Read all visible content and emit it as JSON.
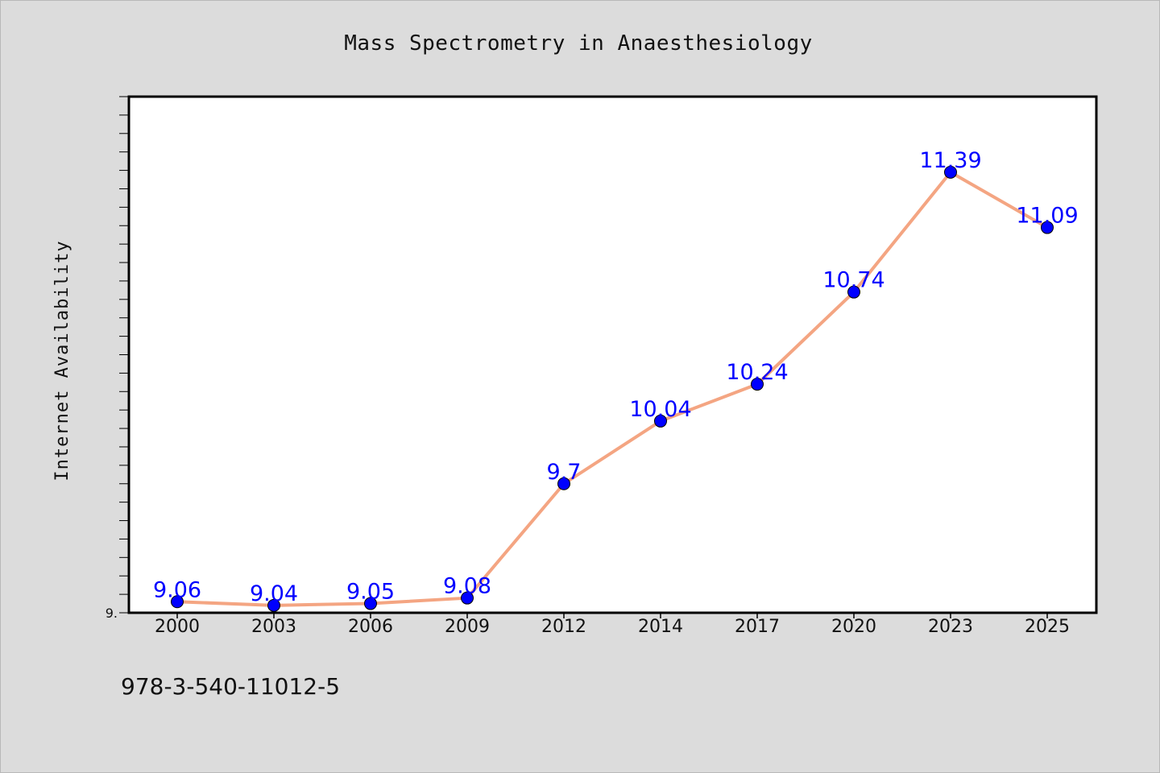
{
  "chart_data": {
    "type": "line",
    "title": "Mass Spectrometry in Anaesthesiology",
    "xlabel": "",
    "ylabel": "Internet Availability",
    "categories": [
      "2000",
      "2003",
      "2006",
      "2009",
      "2012",
      "2014",
      "2017",
      "2020",
      "2023",
      "2025"
    ],
    "series": [
      {
        "values": [
          9.06,
          9.04,
          9.05,
          9.08,
          9.7,
          10.04,
          10.24,
          10.74,
          11.39,
          11.09
        ],
        "line_color": "#f4a582",
        "marker_color": "#0000ff"
      }
    ],
    "data_labels": [
      "9.06",
      "9.04",
      "9.05",
      "9.08",
      "9.7",
      "10.04",
      "10.24",
      "10.74",
      "11.39",
      "11.09"
    ],
    "ylim": [
      9.0,
      11.8
    ],
    "y_tick_labels": [
      "9."
    ],
    "y_tick_step": 0.1,
    "grid": false,
    "legend": "none"
  },
  "footnote": "978-3-540-11012-5",
  "colors": {
    "background": "#dcdcdc",
    "plot_background": "#ffffff",
    "line": "#f4a582",
    "marker": "#0000ff",
    "data_label": "#0000ff"
  }
}
